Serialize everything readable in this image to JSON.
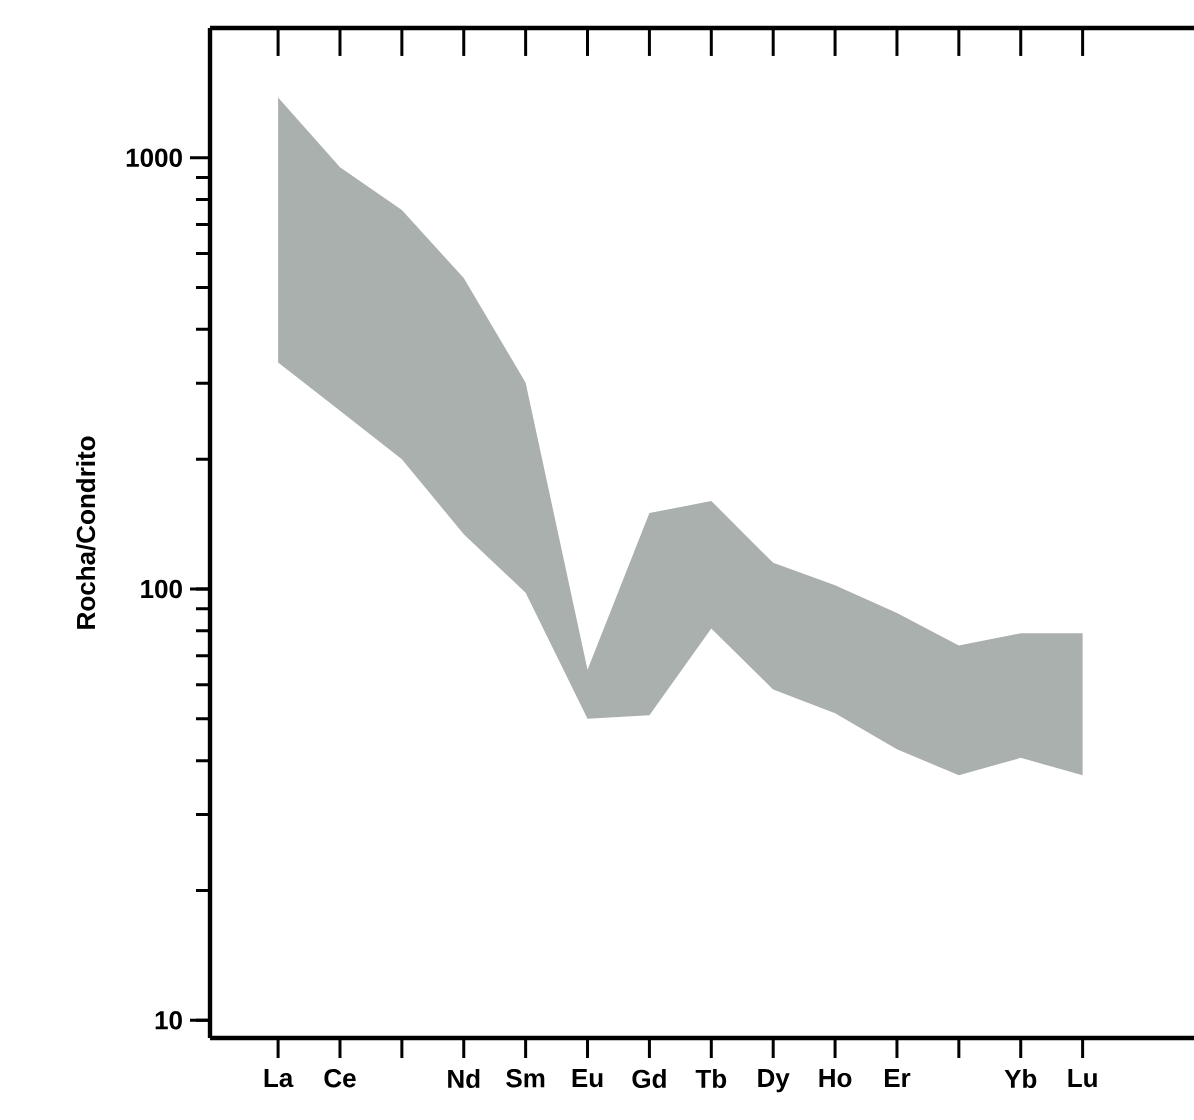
{
  "chart_data": {
    "type": "line",
    "ylabel": "Rocha/Condrito",
    "categories": [
      "La",
      "Ce",
      null,
      "Nd",
      "Sm",
      "Eu",
      "Gd",
      "Tb",
      "Dy",
      "Ho",
      "Er",
      null,
      "Yb",
      "Lu"
    ],
    "series": [
      {
        "color": "#aab0ad",
        "values": [
          null,
          null,
          null,
          null,
          null,
          null,
          null,
          null,
          null,
          null,
          null,
          null,
          null,
          null
        ],
        "lower": [
          335,
          259,
          200,
          134,
          98,
          50,
          51,
          81,
          58.5,
          51.5,
          42.5,
          37,
          40.6,
          37
        ],
        "upper": [
          1380,
          950,
          757,
          526,
          301,
          65,
          150,
          160,
          115,
          102,
          88,
          74,
          79,
          79
        ]
      }
    ],
    "log": "y",
    "ylim": [
      9.1,
      2000
    ],
    "yticks": [
      10,
      100,
      1000
    ],
    "grid": false
  }
}
